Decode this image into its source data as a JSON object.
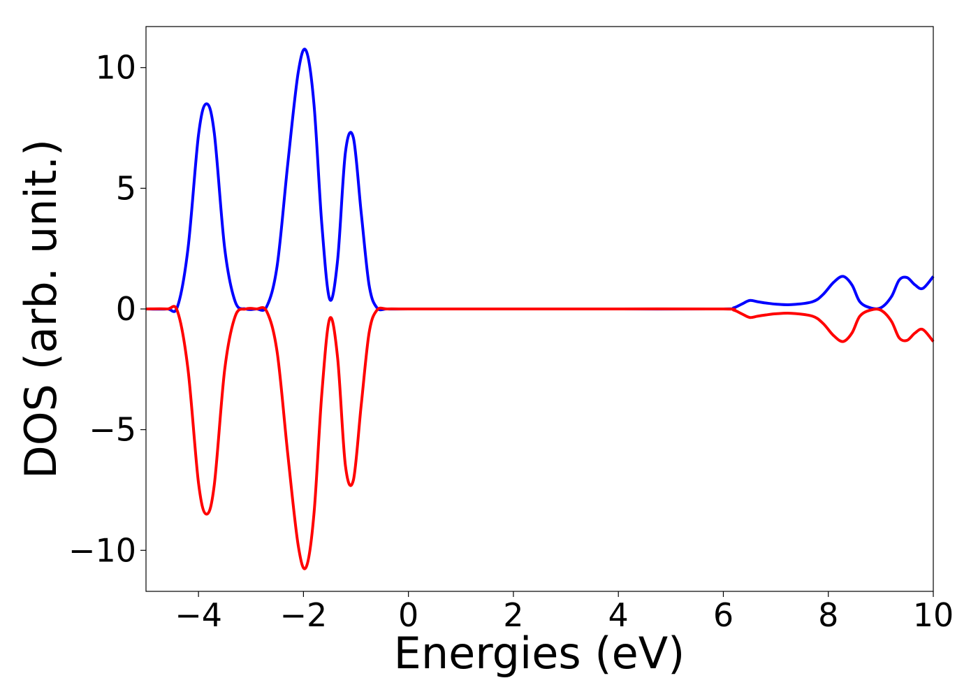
{
  "chart_data": {
    "type": "line",
    "title": "",
    "xlabel": "Energies (eV)",
    "ylabel": "DOS (arb. unit.)",
    "xlim": [
      -5,
      10
    ],
    "ylim": [
      -11.7,
      11.7
    ],
    "grid": false,
    "x_ticks": [
      -4,
      -2,
      0,
      2,
      4,
      6,
      8,
      10
    ],
    "x_tick_labels": [
      "−4",
      "−2",
      "0",
      "2",
      "4",
      "6",
      "8",
      "10"
    ],
    "y_ticks": [
      -10,
      -5,
      0,
      5,
      10
    ],
    "y_tick_labels": [
      "−10",
      "−5",
      "0",
      "5",
      "10"
    ],
    "series": [
      {
        "color": "#0000ff",
        "x": [
          -5.0,
          -4.6,
          -4.4,
          -4.2,
          -4.0,
          -3.85,
          -3.7,
          -3.5,
          -3.3,
          -3.1,
          -2.9,
          -2.7,
          -2.5,
          -2.3,
          -2.1,
          -1.95,
          -1.8,
          -1.65,
          -1.5,
          -1.35,
          -1.2,
          -1.05,
          -0.9,
          -0.75,
          -0.6,
          -0.4,
          0.0,
          2.0,
          4.0,
          6.0,
          6.2,
          6.35,
          6.5,
          6.65,
          6.8,
          7.0,
          7.3,
          7.7,
          7.9,
          8.1,
          8.28,
          8.45,
          8.6,
          8.8,
          9.0,
          9.2,
          9.35,
          9.5,
          9.65,
          9.8,
          10.0
        ],
        "y": [
          0.0,
          0.0,
          0.1,
          2.5,
          7.2,
          8.5,
          7.3,
          2.5,
          0.3,
          0.0,
          0.0,
          0.1,
          1.8,
          6.0,
          9.8,
          10.7,
          8.5,
          3.5,
          0.4,
          2.0,
          6.5,
          7.1,
          4.0,
          1.0,
          0.05,
          0.0,
          0.0,
          0.0,
          0.0,
          0.0,
          0.05,
          0.2,
          0.35,
          0.3,
          0.25,
          0.2,
          0.18,
          0.3,
          0.6,
          1.1,
          1.35,
          1.0,
          0.3,
          0.05,
          0.05,
          0.5,
          1.2,
          1.3,
          1.0,
          0.85,
          1.35
        ]
      },
      {
        "color": "#ff0000",
        "x": [
          -5.0,
          -4.6,
          -4.4,
          -4.2,
          -4.0,
          -3.85,
          -3.7,
          -3.5,
          -3.3,
          -3.1,
          -2.9,
          -2.7,
          -2.5,
          -2.3,
          -2.1,
          -1.95,
          -1.8,
          -1.65,
          -1.5,
          -1.35,
          -1.2,
          -1.05,
          -0.9,
          -0.75,
          -0.6,
          -0.4,
          0.0,
          2.0,
          4.0,
          6.0,
          6.2,
          6.35,
          6.5,
          6.65,
          6.8,
          7.0,
          7.3,
          7.7,
          7.9,
          8.1,
          8.28,
          8.45,
          8.6,
          8.8,
          9.0,
          9.2,
          9.35,
          9.5,
          9.65,
          9.8,
          10.0
        ],
        "y": [
          0.0,
          0.0,
          -0.1,
          -2.5,
          -7.2,
          -8.5,
          -7.3,
          -2.5,
          -0.3,
          0.0,
          0.0,
          -0.1,
          -1.8,
          -6.0,
          -9.8,
          -10.7,
          -8.5,
          -3.5,
          -0.4,
          -2.0,
          -6.5,
          -7.1,
          -4.0,
          -1.0,
          -0.05,
          0.0,
          0.0,
          0.0,
          0.0,
          0.0,
          -0.05,
          -0.2,
          -0.35,
          -0.3,
          -0.25,
          -0.2,
          -0.18,
          -0.3,
          -0.6,
          -1.1,
          -1.35,
          -1.0,
          -0.3,
          -0.05,
          -0.05,
          -0.5,
          -1.2,
          -1.3,
          -1.0,
          -0.85,
          -1.35
        ]
      }
    ]
  }
}
